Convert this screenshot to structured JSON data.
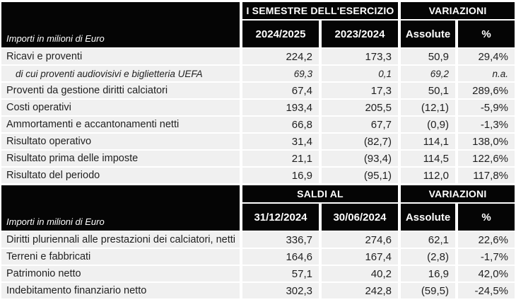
{
  "colors": {
    "header_bg": "#050505",
    "header_text": "#ffffff",
    "row_bg": "#f0f0f0",
    "body_text": "#1f1f1f",
    "divider": "#ffffff"
  },
  "sections": [
    {
      "corner_label": "Importi in milioni di Euro",
      "group_headers": [
        {
          "label": "I SEMESTRE DELL'ESERCIZIO"
        },
        {
          "label": "VARIAZIONI"
        }
      ],
      "column_headers": [
        "2024/2025",
        "2023/2024",
        "Assolute",
        "%"
      ],
      "rows": [
        {
          "label": "Ricavi e proventi",
          "values": [
            "224,2",
            "173,3",
            "50,9",
            "29,4%"
          ],
          "italic": false
        },
        {
          "label": "di cui proventi audiovisivi e biglietteria UEFA",
          "values": [
            "69,3",
            "0,1",
            "69,2",
            "n.a."
          ],
          "italic": true
        },
        {
          "label": "Proventi da gestione diritti calciatori",
          "values": [
            "67,4",
            "17,3",
            "50,1",
            "289,6%"
          ],
          "italic": false
        },
        {
          "label": "Costi operativi",
          "values": [
            "193,4",
            "205,5",
            "(12,1)",
            "-5,9%"
          ],
          "italic": false
        },
        {
          "label": "Ammortamenti e accantonamenti netti",
          "values": [
            "66,8",
            "67,7",
            "(0,9)",
            "-1,3%"
          ],
          "italic": false
        },
        {
          "label": "Risultato operativo",
          "values": [
            "31,4",
            "(82,7)",
            "114,1",
            "138,0%"
          ],
          "italic": false
        },
        {
          "label": "Risultato prima delle imposte",
          "values": [
            "21,1",
            "(93,4)",
            "114,5",
            "122,6%"
          ],
          "italic": false
        },
        {
          "label": "Risultato del periodo",
          "values": [
            "16,9",
            "(95,1)",
            "112,0",
            "117,8%"
          ],
          "italic": false
        }
      ]
    },
    {
      "corner_label": "Importi in milioni di Euro",
      "group_headers": [
        {
          "label": "SALDI AL"
        },
        {
          "label": "VARIAZIONI"
        }
      ],
      "column_headers": [
        "31/12/2024",
        "30/06/2024",
        "Assolute",
        "%"
      ],
      "rows": [
        {
          "label": "Diritti pluriennali alle prestazioni dei calciatori, netti",
          "values": [
            "336,7",
            "274,6",
            "62,1",
            "22,6%"
          ],
          "italic": false
        },
        {
          "label": "Terreni e fabbricati",
          "values": [
            "164,6",
            "167,4",
            "(2,8)",
            "-1,7%"
          ],
          "italic": false
        },
        {
          "label": "Patrimonio netto",
          "values": [
            "57,1",
            "40,2",
            "16,9",
            "42,0%"
          ],
          "italic": false
        },
        {
          "label": "Indebitamento finanziario netto",
          "values": [
            "302,3",
            "242,8",
            "(59,5)",
            "-24,5%"
          ],
          "italic": false
        }
      ]
    }
  ]
}
